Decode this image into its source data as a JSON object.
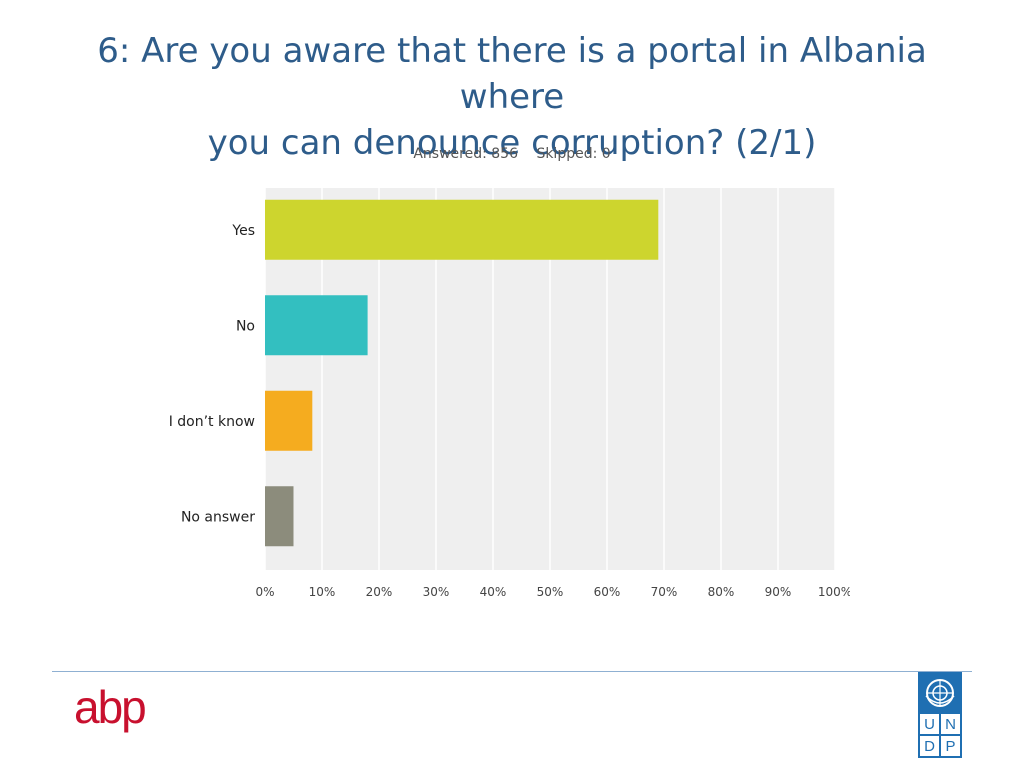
{
  "title": {
    "line1": "6: Are you aware that there is a portal in Albania where",
    "line2": "you can denounce corruption? (2/1)"
  },
  "stats": {
    "answered": "Answered: 856",
    "skipped": "Skipped: 0"
  },
  "chart_data": {
    "type": "bar",
    "orientation": "horizontal",
    "categories": [
      "Yes",
      "No",
      "I don’t know",
      "No answer"
    ],
    "values": [
      69,
      18,
      8.3,
      5
    ],
    "colors": [
      "#cdd52e",
      "#33bfc0",
      "#f5ac1f",
      "#8c8c7c"
    ],
    "xlim": [
      0,
      100
    ],
    "ticks": [
      "0%",
      "10%",
      "20%",
      "30%",
      "40%",
      "50%",
      "60%",
      "70%",
      "80%",
      "90%",
      "100%"
    ],
    "grid": true,
    "plot_background": "#efefef"
  },
  "footer": {
    "left_logo": "abp",
    "right_logo": {
      "letters": [
        "U",
        "N",
        "D",
        "P"
      ],
      "emblem_icon": "un-emblem-icon",
      "color": "#1f6fb2"
    }
  }
}
